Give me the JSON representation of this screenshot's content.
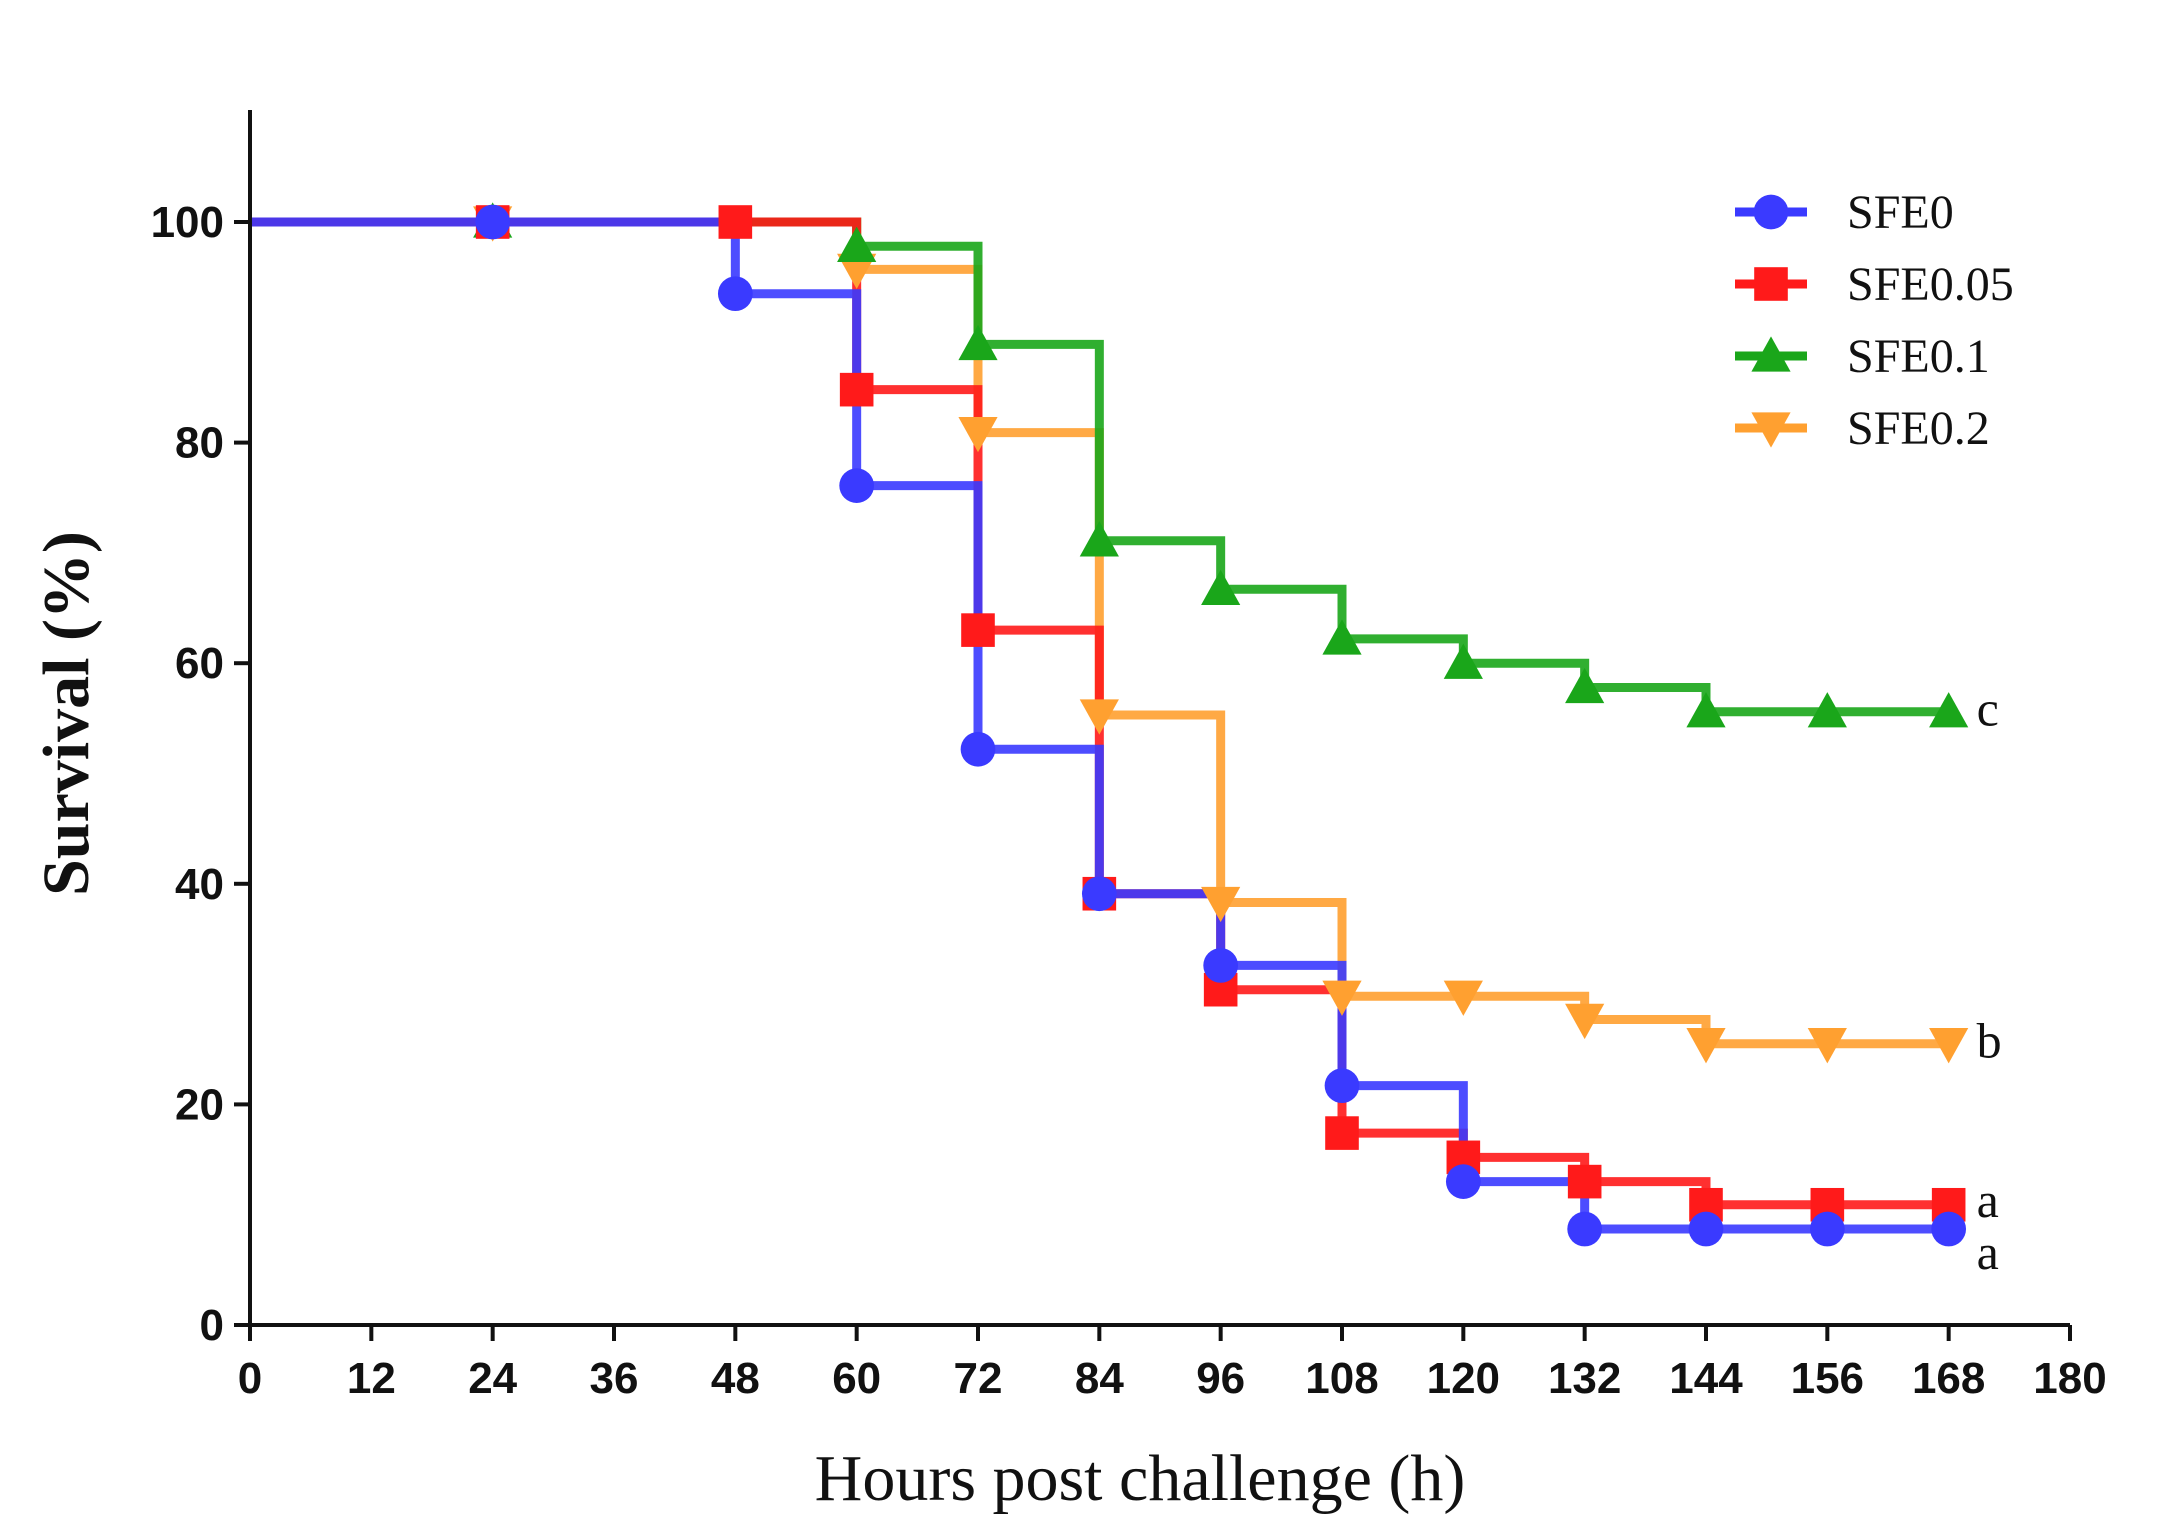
{
  "chart_data": {
    "type": "line",
    "step": true,
    "title": "",
    "xlabel": "Hours post challenge (h)",
    "ylabel": "Survival (%)",
    "xlim": [
      0,
      180
    ],
    "ylim": [
      0,
      110
    ],
    "xticks": [
      0,
      12,
      24,
      36,
      48,
      60,
      72,
      84,
      96,
      108,
      120,
      132,
      144,
      156,
      168,
      180
    ],
    "yticks": [
      0,
      20,
      40,
      60,
      80,
      100
    ],
    "grid": false,
    "legend_position": "top-right",
    "series": [
      {
        "name": "SFE0",
        "color": "#3a3aff",
        "marker": "circle",
        "x": [
          0,
          24,
          48,
          60,
          72,
          84,
          96,
          108,
          120,
          132,
          144,
          156,
          168
        ],
        "y": [
          100,
          100,
          93.5,
          76.1,
          52.2,
          39.1,
          32.6,
          21.7,
          13.0,
          8.7,
          8.7,
          8.7,
          8.7
        ],
        "significance": "a"
      },
      {
        "name": "SFE0.05",
        "color": "#ff1a1a",
        "marker": "square",
        "x": [
          0,
          24,
          48,
          60,
          72,
          84,
          96,
          108,
          120,
          132,
          144,
          156,
          168
        ],
        "y": [
          100,
          100,
          100,
          84.8,
          63.0,
          39.1,
          30.4,
          17.4,
          15.2,
          13.0,
          10.9,
          10.9,
          10.9
        ],
        "significance": "a"
      },
      {
        "name": "SFE0.1",
        "color": "#1aa61a",
        "marker": "triangle-up",
        "x": [
          0,
          24,
          48,
          60,
          72,
          84,
          96,
          108,
          120,
          132,
          144,
          156,
          168
        ],
        "y": [
          100,
          100,
          100,
          97.8,
          88.9,
          71.1,
          66.7,
          62.2,
          60.0,
          57.8,
          55.6,
          55.6,
          55.6
        ],
        "significance": "c"
      },
      {
        "name": "SFE0.2",
        "color": "#ffa030",
        "marker": "triangle-down",
        "x": [
          0,
          24,
          48,
          60,
          72,
          84,
          96,
          108,
          120,
          132,
          144,
          156,
          168
        ],
        "y": [
          100,
          100,
          100,
          95.7,
          80.9,
          55.3,
          38.3,
          29.8,
          29.8,
          27.7,
          25.5,
          25.5,
          25.5
        ],
        "significance": "b"
      }
    ]
  }
}
